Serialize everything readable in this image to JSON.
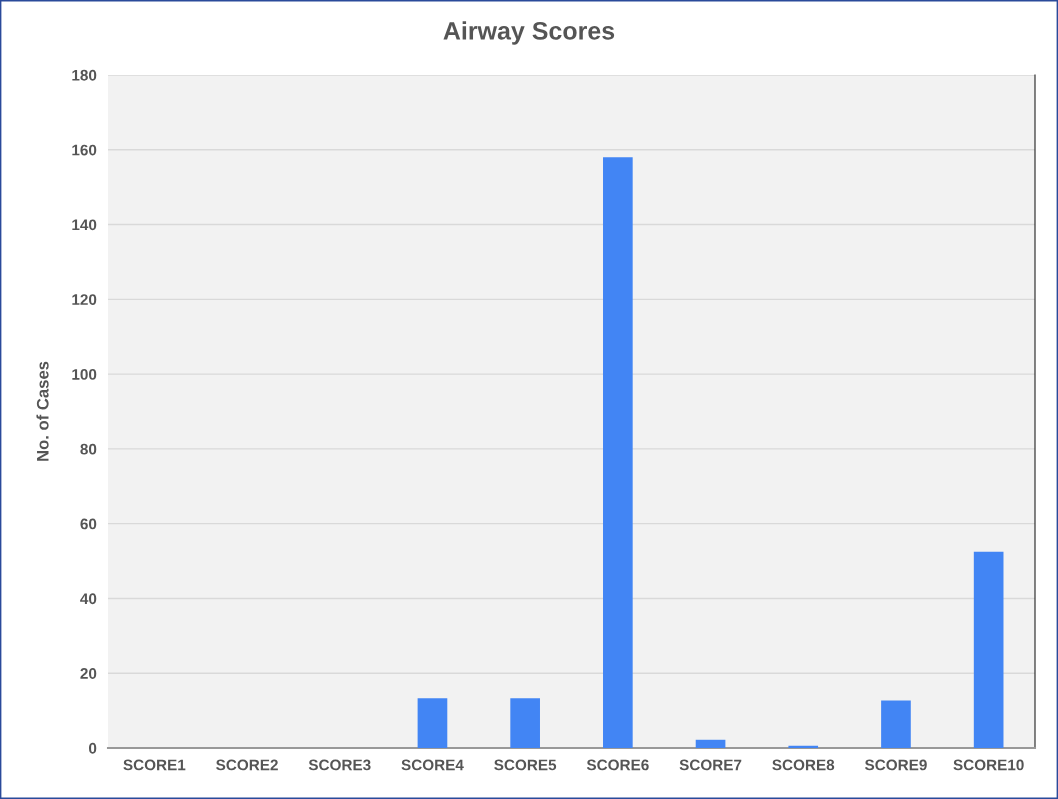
{
  "chart_data": {
    "type": "bar",
    "title": "Airway Scores",
    "ylabel": "No. of Cases",
    "categories": [
      "SCORE1",
      "SCORE2",
      "SCORE3",
      "SCORE4",
      "SCORE5",
      "SCORE6",
      "SCORE7",
      "SCORE8",
      "SCORE9",
      "SCORE10"
    ],
    "values": [
      0,
      0,
      0,
      13.3,
      13.3,
      158,
      2.2,
      0.6,
      12.7,
      52.5
    ],
    "color": "#4285f4",
    "ylim": [
      0,
      180
    ],
    "yticks": [
      0,
      20,
      40,
      60,
      80,
      100,
      120,
      140,
      160,
      180
    ],
    "grid": "y"
  }
}
